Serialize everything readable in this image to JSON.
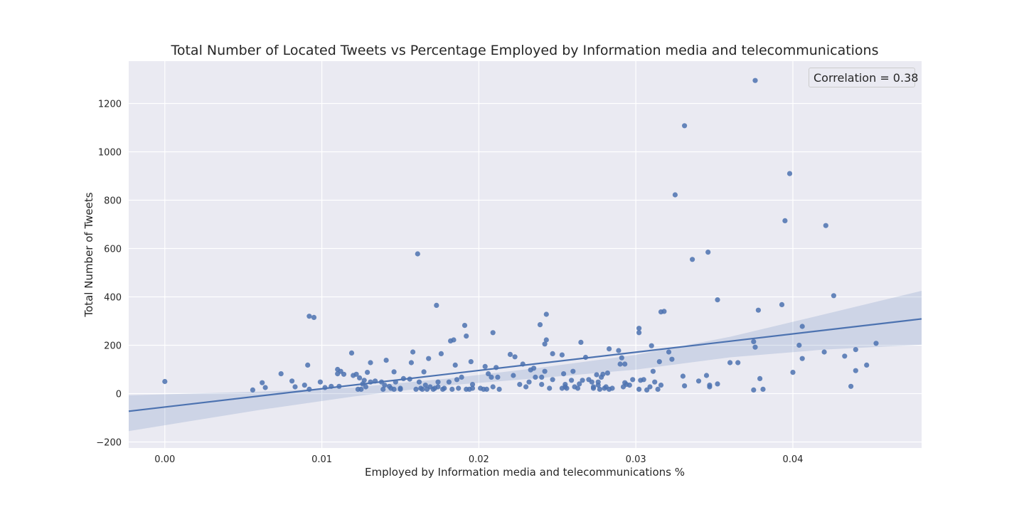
{
  "chart_data": {
    "type": "scatter",
    "title": "Total Number of Located Tweets vs Percentage Employed by Information media and telecommunications",
    "xlabel": "Employed by Information media and telecommunications %",
    "ylabel": "Total Number of Tweets",
    "xlim": [
      -0.0023,
      0.0482
    ],
    "ylim": [
      -225,
      1375
    ],
    "x_ticks": [
      0.0,
      0.01,
      0.02,
      0.03,
      0.04
    ],
    "x_tick_labels": [
      "0.00",
      "0.01",
      "0.02",
      "0.03",
      "0.04"
    ],
    "y_ticks": [
      -200,
      0,
      200,
      400,
      600,
      800,
      1000,
      1200
    ],
    "y_tick_labels": [
      "−200",
      "0",
      "200",
      "400",
      "600",
      "800",
      "1000",
      "1200"
    ],
    "grid": true,
    "legend": {
      "placement": "top-right",
      "text": "Correlation = 0.38"
    },
    "colors": {
      "background": "#EAEAF2",
      "points": "#4C72B0",
      "band": "#4C72B0"
    },
    "regression": {
      "line": [
        [
          -0.0023,
          -73
        ],
        [
          0.0482,
          309
        ]
      ],
      "ci_upper": [
        [
          -0.0023,
          -7
        ],
        [
          0.006,
          8
        ],
        [
          0.012,
          25
        ],
        [
          0.018,
          62
        ],
        [
          0.024,
          108
        ],
        [
          0.03,
          160
        ],
        [
          0.036,
          235
        ],
        [
          0.042,
          328
        ],
        [
          0.0482,
          425
        ]
      ],
      "ci_lower": [
        [
          -0.0023,
          -155
        ],
        [
          0.006,
          -68
        ],
        [
          0.012,
          -12
        ],
        [
          0.018,
          34
        ],
        [
          0.024,
          65
        ],
        [
          0.03,
          99
        ],
        [
          0.036,
          150
        ],
        [
          0.042,
          182
        ],
        [
          0.0482,
          202
        ]
      ]
    },
    "points": [
      [
        0.0,
        50
      ],
      [
        0.0056,
        15
      ],
      [
        0.0062,
        45
      ],
      [
        0.0064,
        25
      ],
      [
        0.0074,
        82
      ],
      [
        0.0081,
        52
      ],
      [
        0.0083,
        28
      ],
      [
        0.0089,
        35
      ],
      [
        0.0091,
        118
      ],
      [
        0.0092,
        18
      ],
      [
        0.0092,
        320
      ],
      [
        0.0095,
        315
      ],
      [
        0.0099,
        48
      ],
      [
        0.0102,
        25
      ],
      [
        0.0106,
        30
      ],
      [
        0.011,
        82
      ],
      [
        0.011,
        100
      ],
      [
        0.0111,
        30
      ],
      [
        0.0112,
        92
      ],
      [
        0.0114,
        80
      ],
      [
        0.0119,
        168
      ],
      [
        0.012,
        75
      ],
      [
        0.0122,
        80
      ],
      [
        0.0123,
        18
      ],
      [
        0.0124,
        65
      ],
      [
        0.0125,
        18
      ],
      [
        0.0126,
        40
      ],
      [
        0.0127,
        55
      ],
      [
        0.0128,
        28
      ],
      [
        0.0129,
        88
      ],
      [
        0.0131,
        128
      ],
      [
        0.0131,
        48
      ],
      [
        0.0134,
        52
      ],
      [
        0.0138,
        48
      ],
      [
        0.0139,
        18
      ],
      [
        0.014,
        35
      ],
      [
        0.0141,
        138
      ],
      [
        0.0143,
        30
      ],
      [
        0.0144,
        22
      ],
      [
        0.0146,
        18
      ],
      [
        0.0146,
        90
      ],
      [
        0.0147,
        48
      ],
      [
        0.015,
        18
      ],
      [
        0.015,
        22
      ],
      [
        0.0152,
        62
      ],
      [
        0.0156,
        60
      ],
      [
        0.0157,
        128
      ],
      [
        0.0158,
        172
      ],
      [
        0.016,
        18
      ],
      [
        0.0161,
        578
      ],
      [
        0.0162,
        48
      ],
      [
        0.0163,
        22
      ],
      [
        0.0164,
        18
      ],
      [
        0.0165,
        90
      ],
      [
        0.0166,
        35
      ],
      [
        0.0167,
        18
      ],
      [
        0.0168,
        145
      ],
      [
        0.0169,
        28
      ],
      [
        0.0171,
        18
      ],
      [
        0.0172,
        22
      ],
      [
        0.0173,
        365
      ],
      [
        0.0174,
        28
      ],
      [
        0.0174,
        48
      ],
      [
        0.0176,
        165
      ],
      [
        0.0177,
        18
      ],
      [
        0.0178,
        22
      ],
      [
        0.0181,
        48
      ],
      [
        0.0182,
        218
      ],
      [
        0.0183,
        18
      ],
      [
        0.0184,
        222
      ],
      [
        0.0185,
        118
      ],
      [
        0.0186,
        58
      ],
      [
        0.0187,
        22
      ],
      [
        0.0189,
        68
      ],
      [
        0.0191,
        282
      ],
      [
        0.0192,
        18
      ],
      [
        0.0192,
        238
      ],
      [
        0.0194,
        18
      ],
      [
        0.0195,
        132
      ],
      [
        0.0196,
        38
      ],
      [
        0.0196,
        22
      ],
      [
        0.0201,
        22
      ],
      [
        0.0203,
        18
      ],
      [
        0.0204,
        112
      ],
      [
        0.0205,
        18
      ],
      [
        0.0206,
        82
      ],
      [
        0.0208,
        68
      ],
      [
        0.0209,
        28
      ],
      [
        0.0209,
        252
      ],
      [
        0.0211,
        108
      ],
      [
        0.0212,
        68
      ],
      [
        0.0213,
        18
      ],
      [
        0.022,
        162
      ],
      [
        0.0222,
        75
      ],
      [
        0.0223,
        152
      ],
      [
        0.0226,
        38
      ],
      [
        0.0228,
        122
      ],
      [
        0.023,
        28
      ],
      [
        0.0232,
        48
      ],
      [
        0.0233,
        98
      ],
      [
        0.0235,
        105
      ],
      [
        0.0236,
        68
      ],
      [
        0.0239,
        285
      ],
      [
        0.024,
        38
      ],
      [
        0.024,
        68
      ],
      [
        0.0242,
        205
      ],
      [
        0.0242,
        92
      ],
      [
        0.0243,
        222
      ],
      [
        0.0243,
        328
      ],
      [
        0.0245,
        22
      ],
      [
        0.0247,
        165
      ],
      [
        0.0247,
        58
      ],
      [
        0.0253,
        160
      ],
      [
        0.0253,
        22
      ],
      [
        0.0254,
        82
      ],
      [
        0.0255,
        28
      ],
      [
        0.0255,
        38
      ],
      [
        0.0256,
        22
      ],
      [
        0.0259,
        55
      ],
      [
        0.026,
        92
      ],
      [
        0.0261,
        28
      ],
      [
        0.0263,
        22
      ],
      [
        0.0264,
        40
      ],
      [
        0.0265,
        212
      ],
      [
        0.0266,
        55
      ],
      [
        0.0268,
        150
      ],
      [
        0.027,
        58
      ],
      [
        0.0272,
        48
      ],
      [
        0.0273,
        22
      ],
      [
        0.0273,
        28
      ],
      [
        0.0275,
        78
      ],
      [
        0.0276,
        48
      ],
      [
        0.0276,
        35
      ],
      [
        0.0277,
        18
      ],
      [
        0.0278,
        68
      ],
      [
        0.0279,
        80
      ],
      [
        0.028,
        22
      ],
      [
        0.0281,
        28
      ],
      [
        0.0282,
        85
      ],
      [
        0.0283,
        185
      ],
      [
        0.0283,
        18
      ],
      [
        0.0285,
        22
      ],
      [
        0.0289,
        178
      ],
      [
        0.029,
        122
      ],
      [
        0.0291,
        148
      ],
      [
        0.0292,
        28
      ],
      [
        0.0293,
        45
      ],
      [
        0.0293,
        122
      ],
      [
        0.0294,
        38
      ],
      [
        0.0296,
        35
      ],
      [
        0.0298,
        58
      ],
      [
        0.0302,
        18
      ],
      [
        0.0302,
        270
      ],
      [
        0.0302,
        252
      ],
      [
        0.0303,
        55
      ],
      [
        0.0305,
        58
      ],
      [
        0.0307,
        15
      ],
      [
        0.0309,
        28
      ],
      [
        0.031,
        198
      ],
      [
        0.0311,
        92
      ],
      [
        0.0312,
        48
      ],
      [
        0.0314,
        18
      ],
      [
        0.0315,
        132
      ],
      [
        0.0316,
        338
      ],
      [
        0.0316,
        35
      ],
      [
        0.0318,
        340
      ],
      [
        0.0321,
        172
      ],
      [
        0.0323,
        142
      ],
      [
        0.0325,
        822
      ],
      [
        0.033,
        72
      ],
      [
        0.0331,
        1108
      ],
      [
        0.0331,
        32
      ],
      [
        0.0336,
        555
      ],
      [
        0.034,
        52
      ],
      [
        0.0345,
        75
      ],
      [
        0.0346,
        585
      ],
      [
        0.0347,
        28
      ],
      [
        0.0347,
        35
      ],
      [
        0.0352,
        388
      ],
      [
        0.0352,
        40
      ],
      [
        0.036,
        128
      ],
      [
        0.0365,
        128
      ],
      [
        0.0375,
        215
      ],
      [
        0.0375,
        15
      ],
      [
        0.0376,
        1295
      ],
      [
        0.0376,
        192
      ],
      [
        0.0378,
        345
      ],
      [
        0.0379,
        62
      ],
      [
        0.0381,
        18
      ],
      [
        0.0393,
        368
      ],
      [
        0.0395,
        715
      ],
      [
        0.0398,
        910
      ],
      [
        0.04,
        88
      ],
      [
        0.0404,
        200
      ],
      [
        0.0406,
        278
      ],
      [
        0.0406,
        145
      ],
      [
        0.042,
        172
      ],
      [
        0.0421,
        695
      ],
      [
        0.0426,
        405
      ],
      [
        0.0433,
        155
      ],
      [
        0.0437,
        30
      ],
      [
        0.044,
        182
      ],
      [
        0.044,
        95
      ],
      [
        0.0447,
        118
      ],
      [
        0.0453,
        208
      ]
    ]
  }
}
